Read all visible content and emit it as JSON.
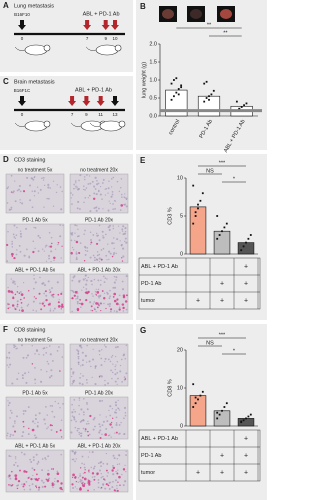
{
  "panels": {
    "A": {
      "letter": "A",
      "title": "Lung metastasis",
      "cell_line": "B16F10",
      "treatment": "ABL + PD-1 Ab",
      "days": [
        "0",
        "7",
        "9",
        "10"
      ]
    },
    "C": {
      "letter": "C",
      "title": "Brain metastasis",
      "cell_line": "B16F1C",
      "treatment": "ABL + PD-1 Ab",
      "days": [
        "0",
        "7",
        "9",
        "11",
        "13"
      ]
    },
    "D": {
      "letter": "D",
      "title": "CD3 staining",
      "images": [
        "no treatment 5x",
        "no treatment 20x",
        "PD-1 Ab 5x",
        "PD-1 Ab 20x",
        "ABL + PD-1 Ab 5x",
        "ABL + PD-1 Ab 20x"
      ]
    },
    "F": {
      "letter": "F",
      "title": "CD8 staining",
      "images": [
        "no treatment 5x",
        "no treatment 20x",
        "PD-1 Ab 5x",
        "PD-1 Ab 20x",
        "ABL + PD-1 Ab 5x",
        "ABL + PD-1 Ab 20x"
      ]
    }
  },
  "chart_data": [
    {
      "type": "bar",
      "panel": "B",
      "y_label": "lung weight (g)",
      "categories": [
        "control",
        "PD-1 Ab",
        "ABL + PD-1 Ab"
      ],
      "values": [
        0.72,
        0.55,
        0.27
      ],
      "colors": [
        "#ffffff",
        "#ffffff",
        "#ffffff"
      ],
      "points": [
        [
          0.45,
          0.55,
          0.65,
          0.75,
          0.8,
          0.9,
          1.0,
          1.05,
          0.6,
          0.85
        ],
        [
          0.4,
          0.5,
          0.55,
          0.6,
          0.7,
          0.9,
          0.95,
          0.45
        ],
        [
          0.15,
          0.2,
          0.25,
          0.3,
          0.35,
          0.4,
          0.2
        ]
      ],
      "reference_line": 0.15,
      "ylim": [
        0,
        2
      ],
      "yticks": [
        {
          "value": 0,
          "label": "0.0"
        },
        {
          "value": 0.5,
          "label": "0.5"
        },
        {
          "value": 1,
          "label": "1.0"
        },
        {
          "value": 1.5,
          "label": "1.5"
        },
        {
          "value": 2,
          "label": "2.0"
        }
      ],
      "annotations": [
        "**",
        "**"
      ]
    },
    {
      "type": "bar",
      "panel": "E",
      "y_label": "CD3 %",
      "values": [
        6.2,
        3.0,
        1.5
      ],
      "colors": [
        "#f4a58a",
        "#bdbdbd",
        "#555555"
      ],
      "points": [
        [
          4,
          5,
          6,
          7,
          8,
          9,
          5.5,
          6.5
        ],
        [
          2,
          2.5,
          3,
          3.5,
          4,
          5
        ],
        [
          0.5,
          1,
          1.5,
          2,
          2.5
        ]
      ],
      "ylim": [
        0,
        10
      ],
      "yticks": [
        0,
        5,
        10
      ],
      "annotations": [
        "***",
        "NS",
        "*"
      ],
      "table": {
        "rows": [
          "ABL + PD-1 Ab",
          "PD-1 Ab",
          "tumor"
        ],
        "cells": [
          [
            null,
            null,
            "+"
          ],
          [
            null,
            "+",
            "+"
          ],
          [
            "+",
            "+",
            "+"
          ]
        ]
      }
    },
    {
      "type": "bar",
      "panel": "G",
      "y_label": "CD8 %",
      "values": [
        8,
        4,
        2
      ],
      "colors": [
        "#f4a58a",
        "#bdbdbd",
        "#555555"
      ],
      "points": [
        [
          5,
          6,
          7,
          8,
          9,
          11,
          7.5
        ],
        [
          2,
          3,
          4,
          5,
          6,
          3.5
        ],
        [
          1,
          1.5,
          2,
          2.5,
          3,
          1.2
        ]
      ],
      "ylim": [
        0,
        20
      ],
      "yticks": [
        0,
        10,
        20
      ],
      "annotations": [
        "***",
        "NS",
        "*"
      ],
      "table": {
        "rows": [
          "ABL + PD-1 Ab",
          "PD-1 Ab",
          "tumor"
        ],
        "cells": [
          [
            null,
            null,
            "+"
          ],
          [
            null,
            "+",
            "+"
          ],
          [
            "+",
            "+",
            "+"
          ]
        ]
      }
    }
  ]
}
